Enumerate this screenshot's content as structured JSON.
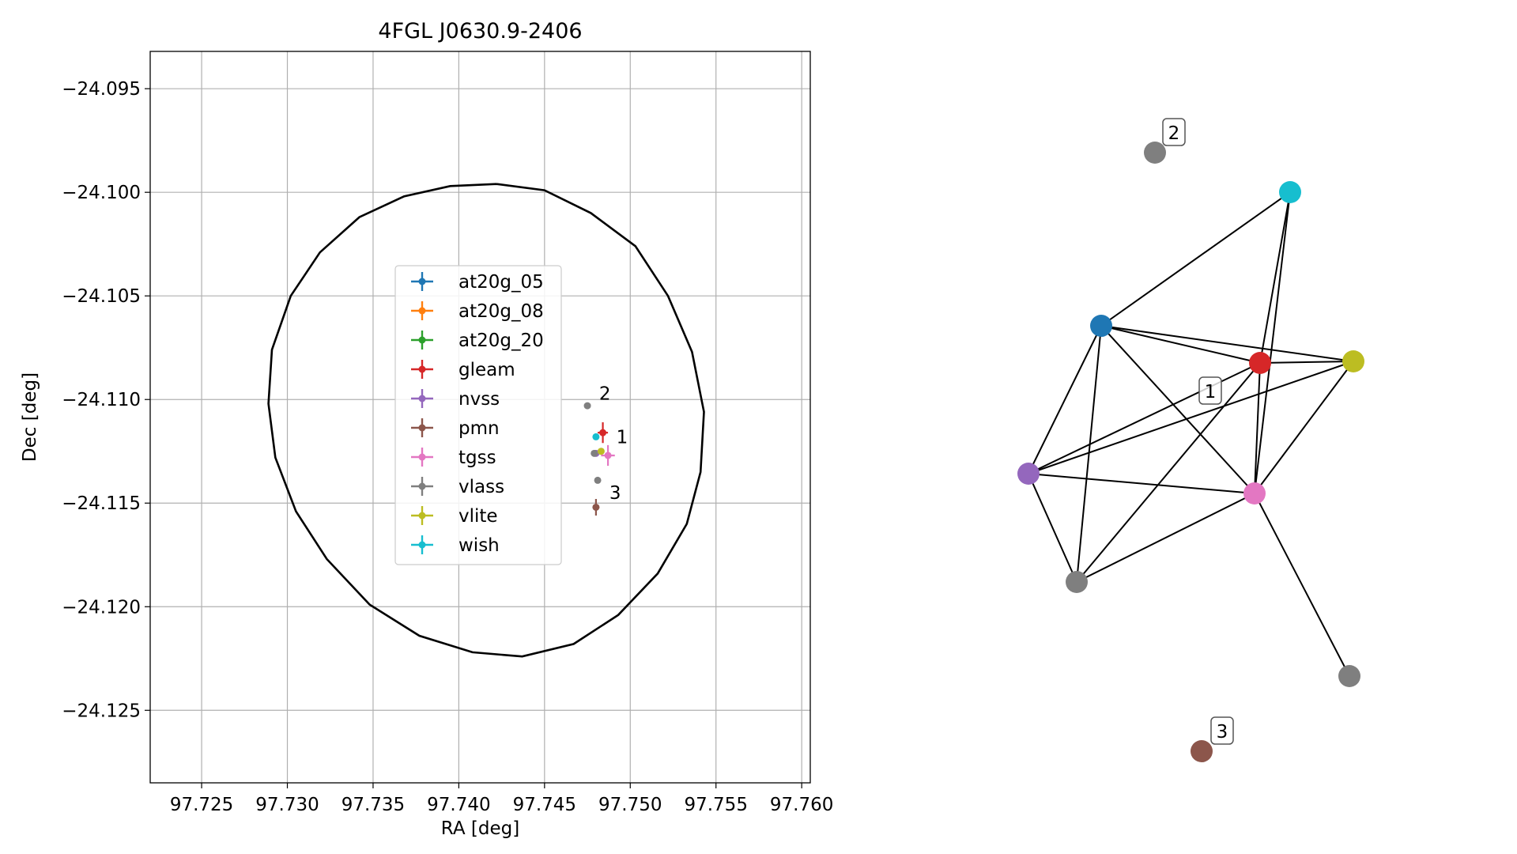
{
  "chart_data": [
    {
      "type": "scatter",
      "title": "4FGL J0630.9-2406",
      "xlabel": "RA [deg]",
      "ylabel": "Dec [deg]",
      "xlim": [
        97.722,
        97.7605
      ],
      "ylim": [
        -24.1285,
        -24.0932
      ],
      "xticks": [
        97.725,
        97.73,
        97.735,
        97.74,
        97.745,
        97.75,
        97.755,
        97.76
      ],
      "yticks": [
        -24.095,
        -24.1,
        -24.105,
        -24.11,
        -24.115,
        -24.12,
        -24.125
      ],
      "xtick_labels": [
        "97.725",
        "97.730",
        "97.735",
        "97.740",
        "97.745",
        "97.750",
        "97.755",
        "97.760"
      ],
      "ytick_labels": [
        "−24.095",
        "−24.100",
        "−24.105",
        "−24.110",
        "−24.115",
        "−24.120",
        "−24.125"
      ],
      "grid": true,
      "legend": "center",
      "ellipse": {
        "color": "#000000",
        "points": [
          [
            97.7422,
            -24.0996
          ],
          [
            97.745,
            -24.0999
          ],
          [
            97.7477,
            -24.101
          ],
          [
            97.7503,
            -24.1026
          ],
          [
            97.7522,
            -24.105
          ],
          [
            97.7536,
            -24.1077
          ],
          [
            97.7543,
            -24.1106
          ],
          [
            97.7541,
            -24.1135
          ],
          [
            97.7533,
            -24.116
          ],
          [
            97.7516,
            -24.1184
          ],
          [
            97.7493,
            -24.1204
          ],
          [
            97.7467,
            -24.1218
          ],
          [
            97.7437,
            -24.1224
          ],
          [
            97.7408,
            -24.1222
          ],
          [
            97.7377,
            -24.1214
          ],
          [
            97.7348,
            -24.1199
          ],
          [
            97.7323,
            -24.1177
          ],
          [
            97.7305,
            -24.1154
          ],
          [
            97.7293,
            -24.1128
          ],
          [
            97.7289,
            -24.1102
          ],
          [
            97.7291,
            -24.1076
          ],
          [
            97.7302,
            -24.105
          ],
          [
            97.7319,
            -24.1029
          ],
          [
            97.7342,
            -24.1012
          ],
          [
            97.7368,
            -24.1002
          ],
          [
            97.7395,
            -24.0997
          ],
          [
            97.7422,
            -24.0996
          ]
        ]
      },
      "series": [
        {
          "name": "at20g_05",
          "color": "#1f77b4",
          "points": []
        },
        {
          "name": "at20g_08",
          "color": "#ff7f0e",
          "points": []
        },
        {
          "name": "at20g_20",
          "color": "#2ca02c",
          "points": []
        },
        {
          "name": "gleam",
          "color": "#d62728",
          "points": [
            {
              "x": 97.7484,
              "y": -24.1116,
              "xerr": 0.0003,
              "yerr": 0.0005
            }
          ]
        },
        {
          "name": "nvss",
          "color": "#9467bd",
          "points": [
            {
              "x": 97.748,
              "y": -24.1126,
              "xerr": 0.0001,
              "yerr": 0.0001
            }
          ]
        },
        {
          "name": "pmn",
          "color": "#8c564b",
          "points": [
            {
              "x": 97.748,
              "y": -24.1152,
              "xerr": 0.0002,
              "yerr": 0.0004
            }
          ]
        },
        {
          "name": "tgss",
          "color": "#e377c2",
          "points": [
            {
              "x": 97.7487,
              "y": -24.1127,
              "xerr": 0.0004,
              "yerr": 0.0005
            }
          ]
        },
        {
          "name": "vlass",
          "color": "#7f7f7f",
          "points": [
            {
              "x": 97.7475,
              "y": -24.1103
            },
            {
              "x": 97.7481,
              "y": -24.1139
            },
            {
              "x": 97.7479,
              "y": -24.1126
            }
          ]
        },
        {
          "name": "vlite",
          "color": "#bcbd22",
          "points": [
            {
              "x": 97.7483,
              "y": -24.1125
            }
          ]
        },
        {
          "name": "wish",
          "color": "#17becf",
          "points": [
            {
              "x": 97.748,
              "y": -24.1118
            }
          ]
        }
      ],
      "annotations": [
        {
          "text": "2",
          "x": 97.748,
          "y": -24.1097
        },
        {
          "text": "1",
          "x": 97.749,
          "y": -24.1118
        },
        {
          "text": "3",
          "x": 97.7486,
          "y": -24.1145
        }
      ]
    },
    {
      "type": "network",
      "nodes": [
        {
          "id": "n_vlass_2",
          "color": "#7f7f7f"
        },
        {
          "id": "n_wish",
          "color": "#17becf"
        },
        {
          "id": "n_at20g",
          "color": "#1f77b4"
        },
        {
          "id": "n_gleam",
          "color": "#d62728"
        },
        {
          "id": "n_vlite",
          "color": "#bcbd22"
        },
        {
          "id": "n_nvss",
          "color": "#9467bd"
        },
        {
          "id": "n_tgss",
          "color": "#e377c2"
        },
        {
          "id": "n_vlass_a",
          "color": "#7f7f7f"
        },
        {
          "id": "n_vlass_b",
          "color": "#7f7f7f"
        },
        {
          "id": "n_pmn",
          "color": "#8c564b"
        }
      ],
      "edges": [
        [
          "n_at20g",
          "n_wish"
        ],
        [
          "n_at20g",
          "n_gleam"
        ],
        [
          "n_at20g",
          "n_vlite"
        ],
        [
          "n_at20g",
          "n_nvss"
        ],
        [
          "n_at20g",
          "n_vlass_a"
        ],
        [
          "n_at20g",
          "n_tgss"
        ],
        [
          "n_wish",
          "n_gleam"
        ],
        [
          "n_wish",
          "n_tgss"
        ],
        [
          "n_gleam",
          "n_vlite"
        ],
        [
          "n_gleam",
          "n_tgss"
        ],
        [
          "n_gleam",
          "n_nvss"
        ],
        [
          "n_gleam",
          "n_vlass_a"
        ],
        [
          "n_vlite",
          "n_tgss"
        ],
        [
          "n_vlite",
          "n_nvss"
        ],
        [
          "n_nvss",
          "n_tgss"
        ],
        [
          "n_nvss",
          "n_vlass_a"
        ],
        [
          "n_tgss",
          "n_vlass_a"
        ],
        [
          "n_tgss",
          "n_vlass_b"
        ]
      ],
      "labels": [
        {
          "text": "2",
          "node": "n_vlass_2"
        },
        {
          "text": "1",
          "node": "n_gleam"
        },
        {
          "text": "3",
          "node": "n_pmn"
        }
      ]
    }
  ]
}
